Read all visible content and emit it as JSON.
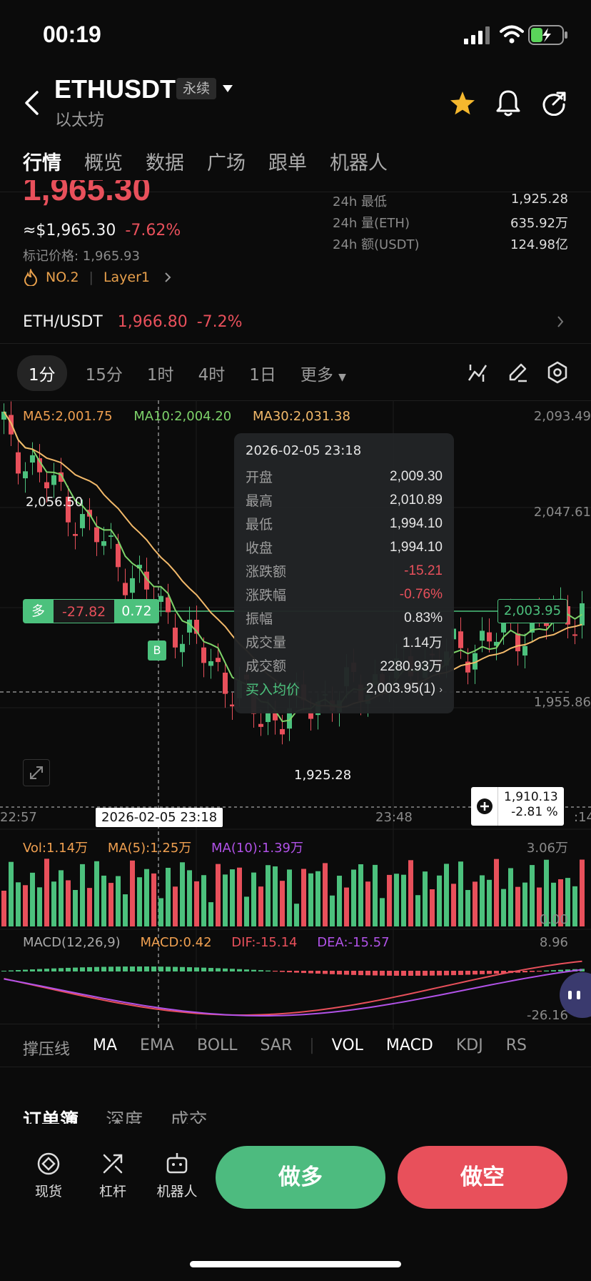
{
  "status_bar": {
    "time": "00:19"
  },
  "header": {
    "symbol": "ETHUSDT",
    "contract_type": "永续",
    "subtitle": "以太坊"
  },
  "tabs": [
    "行情",
    "概览",
    "数据",
    "广场",
    "跟单",
    "机器人"
  ],
  "price": {
    "last_partial": "1,965.30",
    "usd_equiv": "≈$1,965.30",
    "change_pct": "-7.62%",
    "mark_price": "标记价格: 1,965.93",
    "rank": "NO.2",
    "tag": "Layer1"
  },
  "stats": [
    {
      "label": "24h  最低",
      "value": "1,925.28"
    },
    {
      "label": "24h  量(ETH)",
      "value": "635.92万"
    },
    {
      "label": "24h  额(USDT)",
      "value": "124.98亿"
    }
  ],
  "spot_pair": {
    "name": "ETH/USDT",
    "price": "1,966.80",
    "change": "-7.2%"
  },
  "timeframes": [
    "1分",
    "15分",
    "1时",
    "4时",
    "1日",
    "更多"
  ],
  "ma_legend": {
    "ma5": "MA5:2,001.75",
    "ma10": "MA10:2,004.20",
    "ma30": "MA30:2,031.38"
  },
  "y_axis": [
    "2,093.49",
    "2,047.61",
    "1,955.86"
  ],
  "x_axis": [
    "22:57",
    "23:48",
    ":14"
  ],
  "crosshair_date": "2026-02-05 23:18",
  "annotations": {
    "high_label": "2,056.50",
    "low_label": "1,925.28",
    "position_side": "多",
    "position_pnl": "-27.82",
    "position_qty": "0.72",
    "position_price": "2,003.95",
    "buy_marker": "B",
    "last_price_box": "1,910.13",
    "last_price_pct": "-2.81 %"
  },
  "tooltip": {
    "date": "2026-02-05 23:18",
    "rows": [
      {
        "k": "开盘",
        "v": "2,009.30"
      },
      {
        "k": "最高",
        "v": "2,010.89"
      },
      {
        "k": "最低",
        "v": "1,994.10"
      },
      {
        "k": "收盘",
        "v": "1,994.10"
      },
      {
        "k": "涨跌额",
        "v": "-15.21"
      },
      {
        "k": "涨跌幅",
        "v": "-0.76%"
      },
      {
        "k": "振幅",
        "v": "0.83%"
      },
      {
        "k": "成交量",
        "v": "1.14万"
      },
      {
        "k": "成交额",
        "v": "2280.93万"
      }
    ],
    "avg_label": "买入均价",
    "avg_value": "2,003.95(1)"
  },
  "volume_legend": {
    "vol": "Vol:1.14万",
    "ma5": "MA(5):1.25万",
    "ma10": "MA(10):1.39万",
    "max": "3.06万",
    "zero": "0.00"
  },
  "macd_legend": {
    "name": "MACD(12,26,9)",
    "macd": "MACD:0.42",
    "dif": "DIF:-15.14",
    "dea": "DEA:-15.57",
    "max": "8.96",
    "min": "-26.16"
  },
  "indicator_tabs": [
    "撑压线",
    "MA",
    "EMA",
    "BOLL",
    "SAR",
    "VOL",
    "MACD",
    "KDJ",
    "RS"
  ],
  "orderbook_tabs": [
    "订单簿",
    "深度",
    "成交"
  ],
  "bottom_nav": [
    {
      "label": "现货",
      "icon": "spot-icon"
    },
    {
      "label": "杠杆",
      "icon": "leverage-icon"
    },
    {
      "label": "机器人",
      "icon": "robot-icon"
    }
  ],
  "actions": {
    "long": "做多",
    "short": "做空"
  },
  "colors": {
    "up": "#4cc17d",
    "down": "#e8505b",
    "ma5": "#f0a050",
    "ma10": "#7ed36a",
    "ma30": "#f2b96a"
  }
}
